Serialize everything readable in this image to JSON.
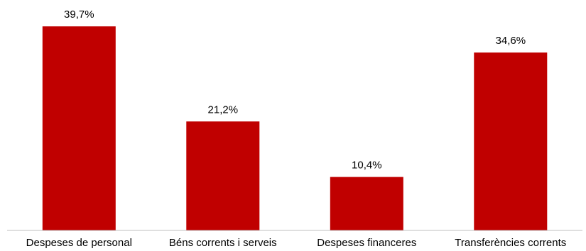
{
  "chart_data": {
    "type": "bar",
    "categories": [
      "Despeses de personal",
      "Béns corrents i serveis",
      "Despeses financeres",
      "Transferències corrents"
    ],
    "values": [
      39.7,
      21.2,
      10.4,
      34.6
    ],
    "data_labels": [
      "39,7%",
      "21,2%",
      "10,4%",
      "34,6%"
    ],
    "unit": "%",
    "ylim": [
      0,
      40
    ],
    "grid": false,
    "legend": "none",
    "bar_color": "#C00000",
    "axis_color": "#BFBFBF"
  }
}
